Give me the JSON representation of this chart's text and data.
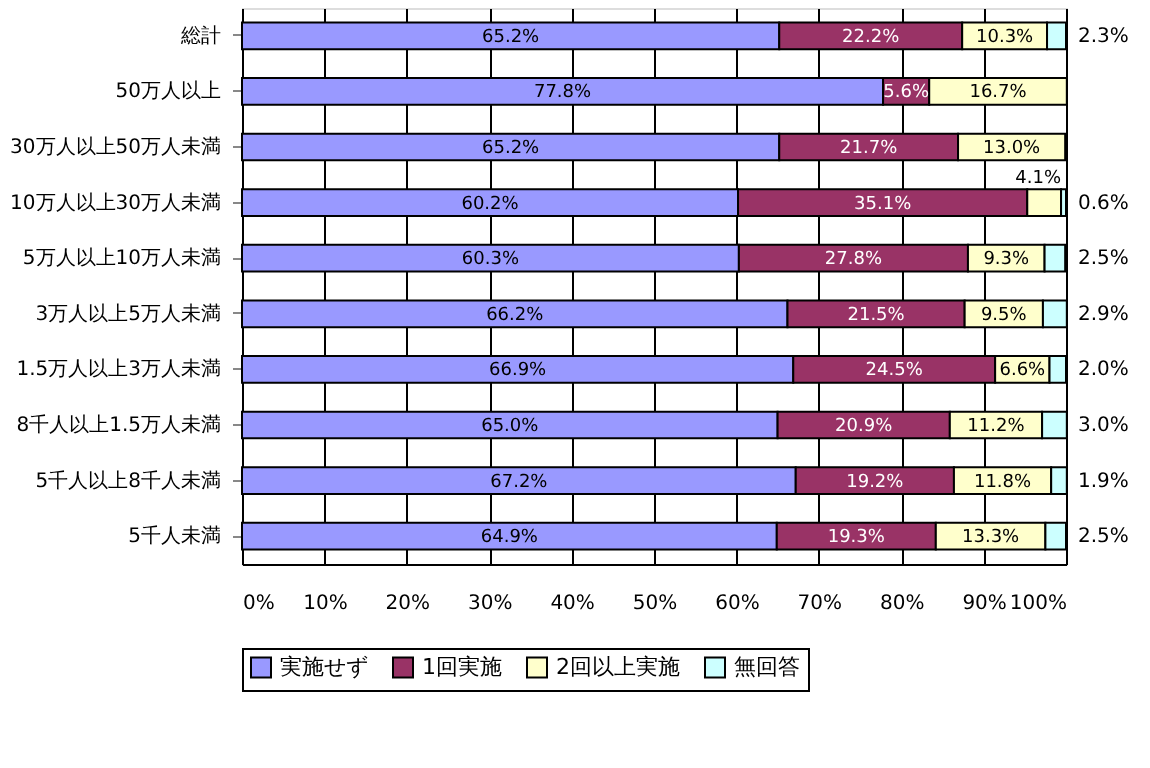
{
  "chart_data": {
    "type": "bar",
    "orientation": "horizontal",
    "stacked": true,
    "grid": "x",
    "legend": "bottom",
    "categories": [
      "総計",
      "50万人以上",
      "30万人以上50万人未満",
      "10万人以上30万人未満",
      "5万人以上10万人未満",
      "3万人以上5万人未満",
      "1.5万人以上3万人未満",
      "8千人以上1.5万人未満",
      "5千人以上8千人未満",
      "5千人未満"
    ],
    "xlim": [
      0,
      100
    ],
    "xticks": [
      {
        "value": 0,
        "label": "0%"
      },
      {
        "value": 10,
        "label": "10%"
      },
      {
        "value": 20,
        "label": "20%"
      },
      {
        "value": 30,
        "label": "30%"
      },
      {
        "value": 40,
        "label": "40%"
      },
      {
        "value": 50,
        "label": "50%"
      },
      {
        "value": 60,
        "label": "60%"
      },
      {
        "value": 70,
        "label": "70%"
      },
      {
        "value": 80,
        "label": "80%"
      },
      {
        "value": 90,
        "label": "90%"
      },
      {
        "value": 100,
        "label": "100%"
      }
    ],
    "series": [
      {
        "name": "実施せず",
        "color": "#9999ff",
        "values": [
          65.2,
          77.8,
          65.2,
          60.2,
          60.3,
          66.2,
          66.9,
          65.0,
          67.2,
          64.9
        ],
        "value_labels": [
          "65.2%",
          "77.8%",
          "65.2%",
          "60.2%",
          "60.3%",
          "66.2%",
          "66.9%",
          "65.0%",
          "67.2%",
          "64.9%"
        ]
      },
      {
        "name": "1回実施",
        "color": "#993366",
        "values": [
          22.2,
          5.6,
          21.7,
          35.1,
          27.8,
          21.5,
          24.5,
          20.9,
          19.2,
          19.3
        ],
        "value_labels": [
          "22.2%",
          "5.6%",
          "21.7%",
          "35.1%",
          "27.8%",
          "21.5%",
          "24.5%",
          "20.9%",
          "19.2%",
          "19.3%"
        ]
      },
      {
        "name": "2回以上実施",
        "color": "#ffffcc",
        "values": [
          10.3,
          16.7,
          13.0,
          4.1,
          9.3,
          9.5,
          6.6,
          11.2,
          11.8,
          13.3
        ],
        "value_labels": [
          "10.3%",
          "16.7%",
          "13.0%",
          "4.1%",
          "9.3%",
          "9.5%",
          "6.6%",
          "11.2%",
          "11.8%",
          "13.3%"
        ]
      },
      {
        "name": "無回答",
        "color": "#ccffff",
        "values": [
          2.3,
          null,
          null,
          0.6,
          2.5,
          2.9,
          2.0,
          3.0,
          1.9,
          2.5
        ],
        "value_labels": [
          "2.3%",
          null,
          null,
          "0.6%",
          "2.5%",
          "2.9%",
          "2.0%",
          "3.0%",
          "1.9%",
          "2.5%"
        ]
      }
    ]
  }
}
